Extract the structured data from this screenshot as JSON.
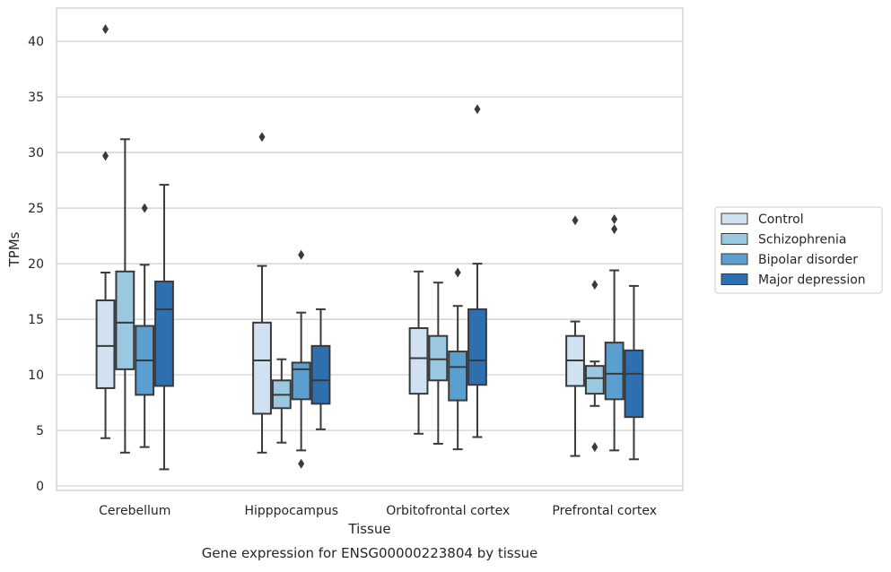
{
  "chart_data": {
    "type": "boxplot",
    "caption": "Gene expression for ENSG00000223804 by tissue",
    "xlabel": "Tissue",
    "ylabel": "TPMs",
    "ylim": [
      -0.4,
      43
    ],
    "yticks": [
      0,
      5,
      10,
      15,
      20,
      25,
      30,
      35,
      40
    ],
    "grid": "horizontal",
    "legend_position": "right",
    "categories": [
      "Cerebellum",
      "Hipppocampus",
      "Orbitofrontal cortex",
      "Prefrontal cortex"
    ],
    "series": [
      {
        "name": "Control",
        "color": "#d0e1f2",
        "boxes": [
          {
            "whislo": 4.3,
            "q1": 8.8,
            "med": 12.6,
            "q3": 16.7,
            "whishi": 19.2,
            "fliers": [
              41.1,
              29.7
            ]
          },
          {
            "whislo": 3.0,
            "q1": 6.5,
            "med": 11.3,
            "q3": 14.7,
            "whishi": 19.8,
            "fliers": [
              31.4
            ]
          },
          {
            "whislo": 4.7,
            "q1": 8.3,
            "med": 11.5,
            "q3": 14.2,
            "whishi": 19.3,
            "fliers": []
          },
          {
            "whislo": 2.7,
            "q1": 9.0,
            "med": 11.3,
            "q3": 13.5,
            "whishi": 14.8,
            "fliers": [
              23.9
            ]
          }
        ]
      },
      {
        "name": "Schizophrenia",
        "color": "#9ac8e0",
        "boxes": [
          {
            "whislo": 3.0,
            "q1": 10.5,
            "med": 14.7,
            "q3": 19.3,
            "whishi": 31.2,
            "fliers": []
          },
          {
            "whislo": 3.9,
            "q1": 7.0,
            "med": 8.2,
            "q3": 9.5,
            "whishi": 11.4,
            "fliers": []
          },
          {
            "whislo": 3.8,
            "q1": 9.5,
            "med": 11.4,
            "q3": 13.5,
            "whishi": 18.3,
            "fliers": []
          },
          {
            "whislo": 7.2,
            "q1": 8.3,
            "med": 9.7,
            "q3": 10.8,
            "whishi": 11.2,
            "fliers": [
              18.1,
              3.5
            ]
          }
        ]
      },
      {
        "name": "Bipolar disorder",
        "color": "#5a9fcf",
        "boxes": [
          {
            "whislo": 3.5,
            "q1": 8.2,
            "med": 11.3,
            "q3": 14.4,
            "whishi": 19.9,
            "fliers": [
              25.0
            ]
          },
          {
            "whislo": 3.2,
            "q1": 7.8,
            "med": 10.5,
            "q3": 11.1,
            "whishi": 15.6,
            "fliers": [
              20.8,
              2.0
            ]
          },
          {
            "whislo": 3.3,
            "q1": 7.7,
            "med": 10.7,
            "q3": 12.1,
            "whishi": 16.2,
            "fliers": [
              19.2
            ]
          },
          {
            "whislo": 3.2,
            "q1": 7.8,
            "med": 10.1,
            "q3": 12.9,
            "whishi": 19.4,
            "fliers": [
              24.0,
              23.1
            ]
          }
        ]
      },
      {
        "name": "Major depression",
        "color": "#2d6faf",
        "boxes": [
          {
            "whislo": 1.5,
            "q1": 9.0,
            "med": 15.9,
            "q3": 18.4,
            "whishi": 27.1,
            "fliers": []
          },
          {
            "whislo": 5.1,
            "q1": 7.4,
            "med": 9.5,
            "q3": 12.6,
            "whishi": 15.9,
            "fliers": []
          },
          {
            "whislo": 4.4,
            "q1": 9.1,
            "med": 11.3,
            "q3": 15.9,
            "whishi": 20.0,
            "fliers": [
              33.9
            ]
          },
          {
            "whislo": 2.4,
            "q1": 6.2,
            "med": 10.1,
            "q3": 12.2,
            "whishi": 18.0,
            "fliers": []
          }
        ]
      }
    ]
  }
}
